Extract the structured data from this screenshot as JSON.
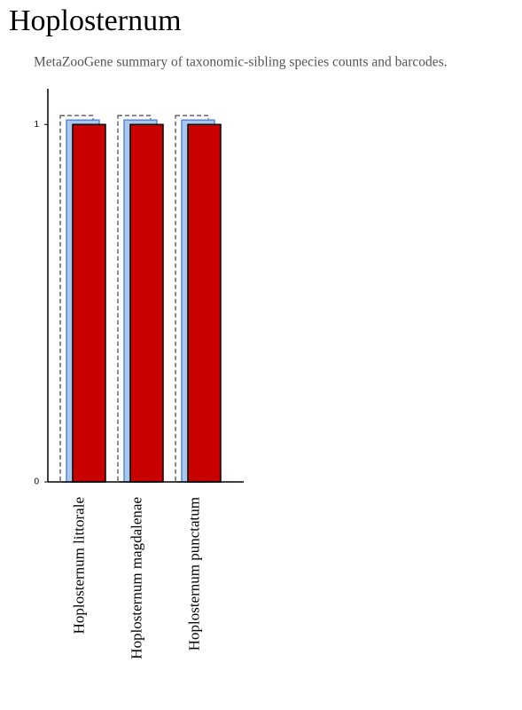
{
  "chart_data": {
    "type": "bar",
    "title": "Hoplosternum",
    "subtitle": "MetaZooGene summary of taxonomic-sibling species counts and barcodes.",
    "categories": [
      "Hoplosternum littorale",
      "Hoplosternum magdalenae",
      "Hoplosternum punctatum"
    ],
    "series": [
      {
        "color": "#666666",
        "dashed": true,
        "values": [
          1,
          1,
          1
        ]
      },
      {
        "color": "#a8c8f0",
        "dashed": false,
        "values": [
          1,
          1,
          1
        ]
      },
      {
        "color": "#c80000",
        "dashed": false,
        "values": [
          1,
          1,
          1
        ]
      }
    ],
    "ylim": [
      0,
      1.1
    ],
    "yticks": [
      0,
      1
    ]
  }
}
